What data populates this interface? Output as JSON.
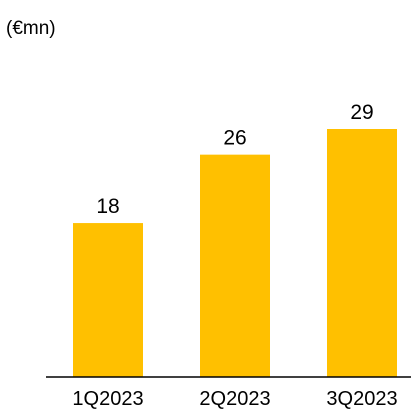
{
  "chart_data": {
    "type": "bar",
    "unit_label": "(€mn)",
    "categories": [
      "1Q2023",
      "2Q2023",
      "3Q2023"
    ],
    "values": [
      18,
      26,
      29
    ],
    "value_labels": [
      "18",
      "26",
      "29"
    ],
    "bar_color": "#FFC000",
    "axis_color": "#000000",
    "ylim": [
      0,
      29
    ],
    "grid": false,
    "legend": "none"
  }
}
